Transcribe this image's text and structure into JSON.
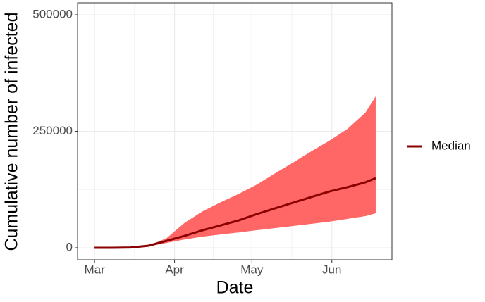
{
  "chart_data": {
    "type": "line",
    "x_label": "Date",
    "y_label": "Cumulative number of infected",
    "x": [
      0,
      7,
      14,
      21,
      28,
      35,
      42,
      49,
      56,
      63,
      70,
      77,
      84,
      91,
      98,
      105,
      109
    ],
    "series": [
      {
        "name": "Median",
        "color": "#8b0000",
        "values": [
          0,
          0,
          500,
          4500,
          15000,
          25700,
          37800,
          48300,
          59000,
          72500,
          84600,
          96700,
          108800,
          120800,
          130000,
          140500,
          149500
        ]
      }
    ],
    "band": {
      "color": "#ff6666",
      "lower": [
        0,
        0,
        300,
        3000,
        10600,
        18000,
        24000,
        28700,
        33000,
        37800,
        42300,
        46800,
        51400,
        56000,
        62000,
        68000,
        74000
      ],
      "upper": [
        0,
        0,
        700,
        4500,
        21000,
        54000,
        78500,
        98000,
        116000,
        136000,
        160000,
        183000,
        207000,
        229600,
        255000,
        290000,
        325000
      ]
    },
    "xlim": [
      -6.6,
      115.3
    ],
    "xticks": [
      {
        "value": 0,
        "label": "Mar"
      },
      {
        "value": 31,
        "label": "Apr"
      },
      {
        "value": 61,
        "label": "May"
      },
      {
        "value": 92,
        "label": "Jun"
      }
    ],
    "ylim": [
      -25700,
      525700
    ],
    "yticks": [
      0,
      250000,
      500000
    ],
    "grid": true,
    "legend": "right"
  }
}
